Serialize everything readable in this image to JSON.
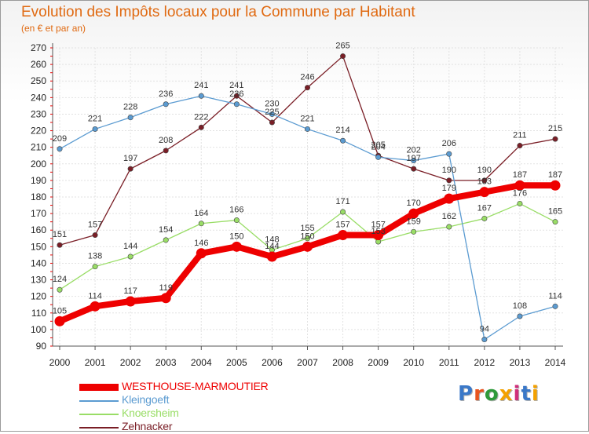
{
  "header": {
    "title": "Evolution des Impôts locaux pour la Commune par Habitant",
    "subtitle": "(en € et par an)"
  },
  "brand": {
    "text": "Proxiti",
    "letter_colors": [
      "#3a78c8",
      "#e8541e",
      "#2e9a3a",
      "#f4a100",
      "#d02f7a",
      "#3a78c8",
      "#f4a100"
    ]
  },
  "chart_data": {
    "type": "line",
    "title": "Evolution des Impôts locaux pour la Commune par Habitant",
    "subtitle": "(en € et par an)",
    "x": [
      2000,
      2001,
      2002,
      2003,
      2004,
      2005,
      2006,
      2007,
      2008,
      2009,
      2010,
      2011,
      2012,
      2013,
      2014
    ],
    "ylim": [
      90,
      270
    ],
    "yticks": [
      90,
      100,
      110,
      120,
      130,
      140,
      150,
      160,
      170,
      180,
      190,
      200,
      210,
      220,
      230,
      240,
      250,
      260,
      270
    ],
    "grid": true,
    "legend_position": "bottom-left",
    "series": [
      {
        "name": "WESTHOUSE-MARMOUTIER",
        "color": "#ee0000",
        "values": [
          105,
          114,
          117,
          119,
          146,
          150,
          144,
          150,
          157,
          157,
          170,
          179,
          183,
          187,
          187
        ]
      },
      {
        "name": "Kleingoeft",
        "color": "#5b9bd1",
        "values": [
          209,
          221,
          228,
          236,
          241,
          236,
          230,
          221,
          214,
          204,
          202,
          206,
          94,
          108,
          114
        ]
      },
      {
        "name": "Knoersheim",
        "color": "#99dd66",
        "values": [
          124,
          138,
          144,
          154,
          164,
          166,
          148,
          155,
          171,
          153,
          159,
          162,
          167,
          176,
          165
        ]
      },
      {
        "name": "Zehnacker",
        "color": "#7a1e26",
        "values": [
          151,
          157,
          197,
          208,
          222,
          241,
          225,
          246,
          265,
          205,
          197,
          190,
          190,
          211,
          215
        ]
      }
    ]
  }
}
